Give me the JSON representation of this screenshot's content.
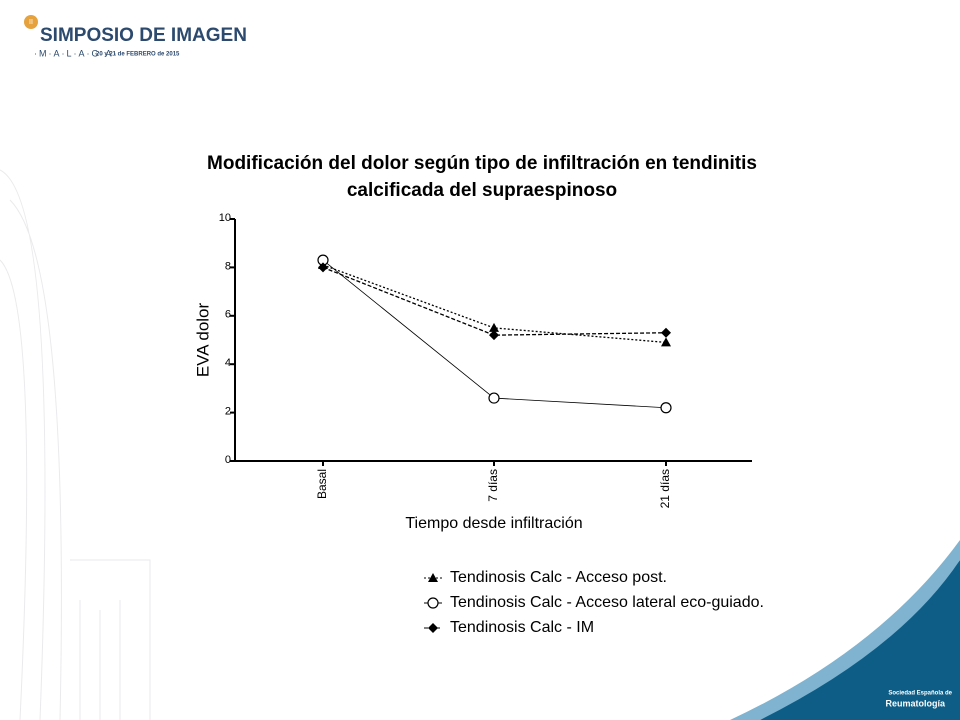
{
  "header": {
    "edition": "II",
    "title": "SIMPOSIO DE IMAGEN",
    "place": "·M·A·L·A·G·A·",
    "date": "20 y 21 de FEBRERO de 2015"
  },
  "chart_data": {
    "type": "line",
    "title": "Modificación del dolor según tipo de infiltración en tendinitis calcificada del supraespinoso",
    "x_label": "Tiempo desde infiltración",
    "y_label": "EVA dolor",
    "categories": [
      "Basal",
      "7 días",
      "21 días"
    ],
    "ylim": [
      0,
      10
    ],
    "yticks": [
      0,
      2,
      4,
      6,
      8,
      10
    ],
    "series": [
      {
        "name": "Tendinosis Calc - Acceso post.",
        "color": "#000000",
        "marker": "triangle",
        "dash": "dotted",
        "values": [
          8.1,
          5.5,
          4.9
        ]
      },
      {
        "name": "Tendinosis Calc - Acceso lateral eco-guiado.",
        "color": "#000000",
        "marker": "circle",
        "dash": "solid",
        "values": [
          8.3,
          2.6,
          2.2
        ]
      },
      {
        "name": "Tendinosis Calc - IM",
        "color": "#000000",
        "marker": "diamond",
        "dash": "dashed",
        "values": [
          8.0,
          5.2,
          5.3
        ]
      }
    ]
  },
  "footer": {
    "org_line1": "Sociedad Española de",
    "org_line2": "Reumatología"
  }
}
